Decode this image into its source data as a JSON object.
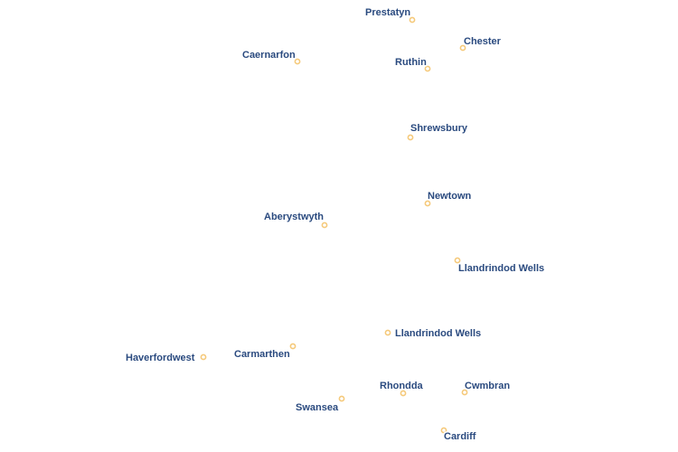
{
  "map": {
    "places": [
      {
        "name": "Prestatyn",
        "icon": "city-marker-icon"
      },
      {
        "name": "Chester",
        "icon": "city-marker-icon"
      },
      {
        "name": "Caernarfon",
        "icon": "city-marker-icon"
      },
      {
        "name": "Ruthin",
        "icon": "city-marker-icon"
      },
      {
        "name": "Shrewsbury",
        "icon": "city-marker-icon"
      },
      {
        "name": "Newtown",
        "icon": "city-marker-icon"
      },
      {
        "name": "Aberystwyth",
        "icon": "city-marker-icon"
      },
      {
        "name": "Llandrindod Wells",
        "icon": "city-marker-icon"
      },
      {
        "name": "Llandrindod Wells",
        "icon": "city-marker-icon"
      },
      {
        "name": "Carmarthen",
        "icon": "city-marker-icon"
      },
      {
        "name": "Haverfordwest",
        "icon": "city-marker-icon"
      },
      {
        "name": "Rhondda",
        "icon": "city-marker-icon"
      },
      {
        "name": "Cwmbran",
        "icon": "city-marker-icon"
      },
      {
        "name": "Swansea",
        "icon": "city-marker-icon"
      },
      {
        "name": "Cardiff",
        "icon": "city-marker-icon"
      }
    ],
    "colors": {
      "label": "#2a4a7f",
      "label_halo": "#ffffff",
      "marker_stroke": "#f5c97a",
      "background": "#ffffff"
    }
  }
}
